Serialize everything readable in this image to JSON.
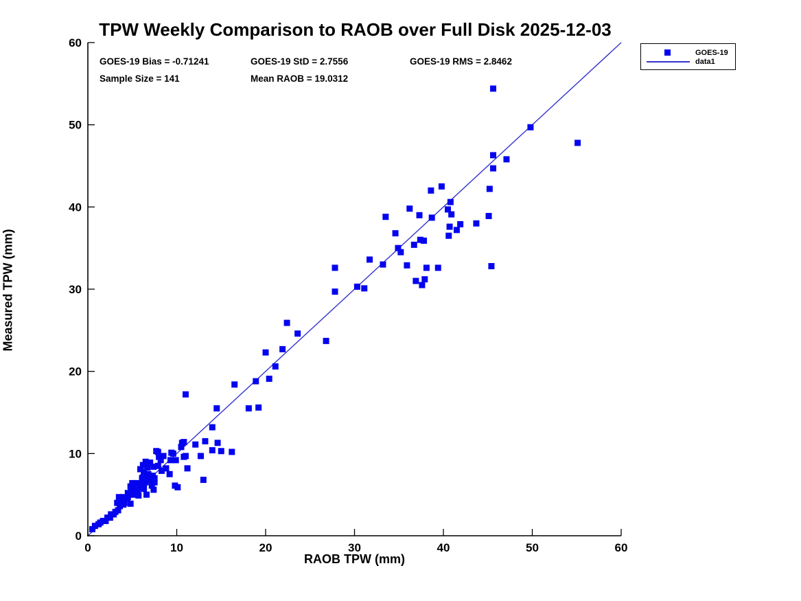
{
  "title": "TPW Weekly Comparison to RAOB over Full Disk 2025-12-03",
  "stats": {
    "bias": "GOES-19 Bias = -0.71241",
    "std": "GOES-19 StD = 2.7556",
    "rms": "GOES-19 RMS = 2.8462",
    "sample_size": "Sample Size = 141",
    "mean_raob": "Mean RAOB = 19.0312"
  },
  "legend": {
    "items": [
      {
        "label": "GOES-19",
        "swatch": "square-marker"
      },
      {
        "label": "data1",
        "swatch": "line"
      }
    ]
  },
  "colors": {
    "marker": "#0404ef",
    "line": "#3333cc",
    "axis": "#000000",
    "background": "#ffffff"
  },
  "chart_data": {
    "type": "scatter",
    "title": "TPW Weekly Comparison to RAOB over Full Disk 2025-12-03",
    "xlabel": "RAOB TPW (mm)",
    "ylabel": "Measured TPW (mm)",
    "xlim": [
      0,
      60
    ],
    "ylim": [
      0,
      60
    ],
    "xticks": [
      0,
      10,
      20,
      30,
      40,
      50,
      60
    ],
    "yticks": [
      0,
      10,
      20,
      30,
      40,
      50,
      60
    ],
    "grid": false,
    "legend_position": "outside-top-right",
    "identity_line": {
      "name": "data1",
      "x": [
        0,
        60
      ],
      "y": [
        0,
        60
      ]
    },
    "series": [
      {
        "name": "GOES-19",
        "marker": "square",
        "sample_size": 141,
        "points": [
          [
            0.5,
            0.8
          ],
          [
            0.8,
            1.2
          ],
          [
            1.2,
            1.4
          ],
          [
            1.4,
            1.6
          ],
          [
            1.7,
            1.8
          ],
          [
            2.0,
            1.8
          ],
          [
            2.2,
            2.2
          ],
          [
            2.5,
            2.2
          ],
          [
            2.6,
            2.6
          ],
          [
            2.9,
            2.6
          ],
          [
            3.1,
            2.9
          ],
          [
            3.3,
            4.0
          ],
          [
            3.4,
            3.1
          ],
          [
            3.5,
            4.7
          ],
          [
            3.6,
            3.6
          ],
          [
            3.8,
            4.2
          ],
          [
            4.0,
            3.8
          ],
          [
            4.0,
            4.7
          ],
          [
            4.1,
            4.0
          ],
          [
            4.4,
            4.6
          ],
          [
            4.5,
            4.7
          ],
          [
            4.5,
            5.2
          ],
          [
            4.8,
            3.9
          ],
          [
            4.8,
            6.0
          ],
          [
            4.9,
            5.0
          ],
          [
            4.9,
            5.6
          ],
          [
            5.0,
            5.4
          ],
          [
            5.0,
            6.4
          ],
          [
            5.2,
            5.8
          ],
          [
            5.4,
            5.0
          ],
          [
            5.4,
            6.4
          ],
          [
            5.6,
            5.6
          ],
          [
            5.7,
            4.9
          ],
          [
            5.9,
            6.3
          ],
          [
            5.9,
            8.1
          ],
          [
            6.1,
            7.0
          ],
          [
            6.2,
            7.1
          ],
          [
            6.2,
            8.6
          ],
          [
            6.3,
            5.7
          ],
          [
            6.3,
            6.0
          ],
          [
            6.3,
            7.8
          ],
          [
            6.5,
            6.5
          ],
          [
            6.5,
            9.0
          ],
          [
            6.6,
            5.0
          ],
          [
            6.7,
            7.1
          ],
          [
            6.7,
            8.3
          ],
          [
            6.8,
            7.5
          ],
          [
            6.8,
            8.8
          ],
          [
            7.0,
            8.9
          ],
          [
            7.1,
            6.8
          ],
          [
            7.1,
            7.1
          ],
          [
            7.2,
            6.1
          ],
          [
            7.3,
            7.3
          ],
          [
            7.4,
            5.6
          ],
          [
            7.4,
            8.4
          ],
          [
            7.5,
            6.5
          ],
          [
            7.5,
            7.0
          ],
          [
            7.7,
            10.3
          ],
          [
            7.9,
            8.5
          ],
          [
            7.9,
            10.2
          ],
          [
            8.0,
            9.6
          ],
          [
            8.2,
            9.2
          ],
          [
            8.3,
            7.9
          ],
          [
            8.5,
            9.7
          ],
          [
            8.8,
            8.2
          ],
          [
            9.2,
            7.5
          ],
          [
            9.3,
            9.2
          ],
          [
            9.4,
            10.1
          ],
          [
            9.6,
            10.0
          ],
          [
            9.8,
            6.1
          ],
          [
            9.9,
            9.2
          ],
          [
            10.1,
            5.9
          ],
          [
            10.5,
            10.8
          ],
          [
            10.6,
            11.3
          ],
          [
            10.8,
            9.6
          ],
          [
            10.8,
            11.4
          ],
          [
            11.0,
            9.7
          ],
          [
            11.0,
            17.2
          ],
          [
            11.2,
            8.2
          ],
          [
            12.1,
            11.1
          ],
          [
            12.7,
            9.7
          ],
          [
            13.0,
            6.8
          ],
          [
            13.2,
            11.5
          ],
          [
            14.0,
            10.4
          ],
          [
            14.0,
            13.2
          ],
          [
            14.5,
            15.5
          ],
          [
            14.6,
            11.3
          ],
          [
            15.0,
            10.3
          ],
          [
            16.2,
            10.2
          ],
          [
            16.5,
            18.4
          ],
          [
            18.1,
            15.5
          ],
          [
            18.9,
            18.8
          ],
          [
            19.2,
            15.6
          ],
          [
            20.0,
            22.3
          ],
          [
            20.4,
            19.1
          ],
          [
            21.1,
            20.6
          ],
          [
            21.9,
            22.7
          ],
          [
            22.4,
            25.9
          ],
          [
            23.6,
            24.6
          ],
          [
            26.8,
            23.7
          ],
          [
            27.8,
            29.7
          ],
          [
            27.8,
            32.6
          ],
          [
            30.3,
            30.3
          ],
          [
            31.1,
            30.1
          ],
          [
            31.7,
            33.6
          ],
          [
            33.2,
            33.0
          ],
          [
            33.5,
            38.8
          ],
          [
            34.6,
            36.8
          ],
          [
            34.9,
            35.0
          ],
          [
            35.2,
            34.5
          ],
          [
            35.9,
            32.9
          ],
          [
            36.2,
            39.8
          ],
          [
            36.7,
            35.4
          ],
          [
            36.9,
            31.0
          ],
          [
            37.3,
            39.0
          ],
          [
            37.4,
            36.0
          ],
          [
            37.6,
            30.5
          ],
          [
            37.8,
            35.9
          ],
          [
            37.9,
            31.2
          ],
          [
            38.1,
            32.6
          ],
          [
            38.6,
            42.0
          ],
          [
            38.7,
            38.7
          ],
          [
            39.4,
            32.6
          ],
          [
            39.8,
            42.5
          ],
          [
            40.5,
            39.7
          ],
          [
            40.6,
            36.5
          ],
          [
            40.7,
            37.6
          ],
          [
            40.8,
            40.6
          ],
          [
            40.9,
            39.1
          ],
          [
            41.5,
            37.2
          ],
          [
            41.9,
            37.9
          ],
          [
            43.7,
            38.0
          ],
          [
            45.1,
            38.9
          ],
          [
            45.2,
            42.2
          ],
          [
            45.4,
            32.8
          ],
          [
            45.6,
            44.7
          ],
          [
            45.6,
            46.3
          ],
          [
            45.6,
            54.4
          ],
          [
            47.1,
            45.8
          ],
          [
            49.8,
            49.7
          ],
          [
            55.1,
            47.8
          ]
        ]
      }
    ]
  }
}
